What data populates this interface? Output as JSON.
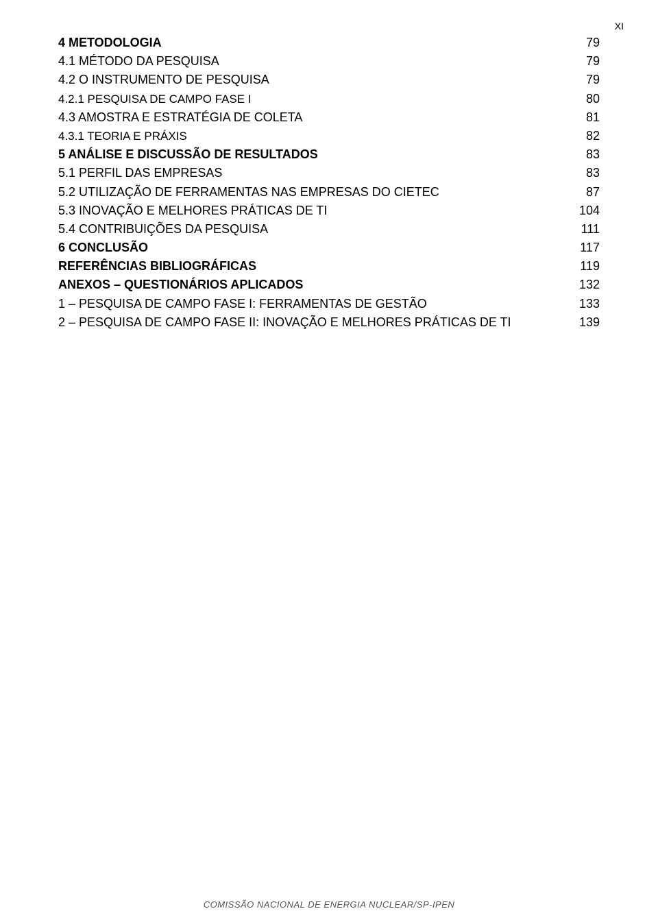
{
  "page_number_top": "XI",
  "toc_entries": [
    {
      "title": "4 METODOLOGIA",
      "page": "79",
      "bold": true
    },
    {
      "title": "4.1 MÉTODO DA PESQUISA",
      "page": "79",
      "bold": false
    },
    {
      "title": "4.2 O INSTRUMENTO DE PESQUISA",
      "page": "79",
      "bold": false
    },
    {
      "title": "4.2.1 PESQUISA DE CAMPO FASE I",
      "page": "80",
      "bold": false,
      "smallcaps": true
    },
    {
      "title": "4.3 AMOSTRA E ESTRATÉGIA DE COLETA",
      "page": "81",
      "bold": false
    },
    {
      "title": "4.3.1 TEORIA E PRÁXIS",
      "page": "82",
      "bold": false,
      "smallcaps": true
    },
    {
      "title": "5 ANÁLISE E DISCUSSÃO DE RESULTADOS",
      "page": "83",
      "bold": true
    },
    {
      "title": "5.1 PERFIL DAS EMPRESAS",
      "page": "83",
      "bold": false
    },
    {
      "title": "5.2 UTILIZAÇÃO DE FERRAMENTAS NAS EMPRESAS DO CIETEC",
      "page": "87",
      "bold": false
    },
    {
      "title": "5.3 INOVAÇÃO E MELHORES PRÁTICAS DE TI",
      "page": "104",
      "bold": false
    },
    {
      "title": "5.4 CONTRIBUIÇÕES DA PESQUISA",
      "page": "111",
      "bold": false
    },
    {
      "title": "6 CONCLUSÃO",
      "page": "117",
      "bold": true
    },
    {
      "title": "REFERÊNCIAS BIBLIOGRÁFICAS",
      "page": "119",
      "bold": true
    },
    {
      "title": "ANEXOS – QUESTIONÁRIOS APLICADOS",
      "page": "132",
      "bold": true
    },
    {
      "title": "1 – PESQUISA DE CAMPO FASE I: FERRAMENTAS DE GESTÃO",
      "page": "133",
      "bold": false
    },
    {
      "title": "2 – PESQUISA DE CAMPO FASE II: INOVAÇÃO E MELHORES PRÁTICAS DE TI",
      "page": "139",
      "bold": false
    }
  ],
  "footer_stamp": "COMISSÃO NACIONAL DE ENERGIA NUCLEAR/SP-IPEN",
  "colors": {
    "background": "#ffffff",
    "text": "#000000",
    "footer_text": "#555555"
  },
  "typography": {
    "body_font_size": 18,
    "page_number_font_size": 14,
    "footer_font_size": 13,
    "smallcaps_font_size": 17
  }
}
